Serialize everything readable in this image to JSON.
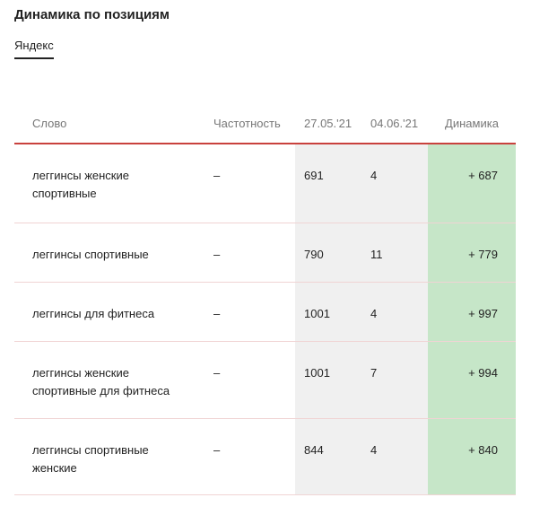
{
  "title": "Динамика по позициям",
  "tabs": [
    {
      "label": "Яндекс",
      "active": true
    }
  ],
  "table": {
    "headers": {
      "word": "Слово",
      "frequency": "Частотность",
      "date1": "27.05.'21",
      "date2": "04.06.'21",
      "dynamics": "Динамика"
    },
    "rows": [
      {
        "word": "леггинсы женские спортивные",
        "frequency": "–",
        "date1": "691",
        "date2": "4",
        "dynamics": "+ 687"
      },
      {
        "word": "леггинсы спортивные",
        "frequency": "–",
        "date1": "790",
        "date2": "11",
        "dynamics": "+ 779"
      },
      {
        "word": "леггинсы для фитнеса",
        "frequency": "–",
        "date1": "1001",
        "date2": "4",
        "dynamics": "+ 997"
      },
      {
        "word": "леггинсы женские спортивные для фитнеса",
        "frequency": "–",
        "date1": "1001",
        "date2": "7",
        "dynamics": "+ 994"
      },
      {
        "word": "леггинсы спортивные женские",
        "frequency": "–",
        "date1": "844",
        "date2": "4",
        "dynamics": "+ 840"
      }
    ]
  },
  "colors": {
    "header_underline": "#c9413d",
    "row_divider": "#f0d4d4",
    "date_column_bg": "#f0f0f0",
    "dynamics_bg": "#c6e6c8"
  }
}
